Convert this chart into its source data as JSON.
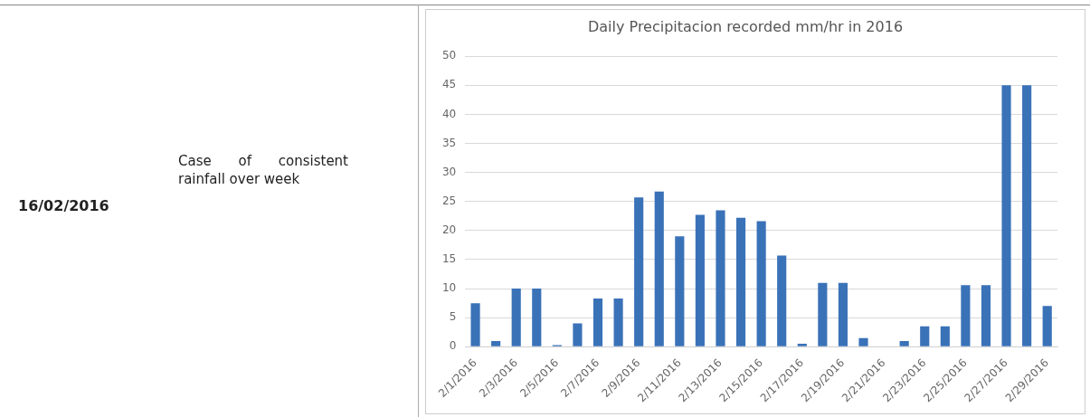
{
  "chart_data": {
    "type": "bar",
    "title": "Daily Precipitacion recorded mm/hr in 2016",
    "categories": [
      "2/1/2016",
      null,
      "2/3/2016",
      null,
      "2/5/2016",
      null,
      "2/7/2016",
      null,
      "2/9/2016",
      null,
      "2/11/2016",
      null,
      "2/13/2016",
      null,
      "2/15/2016",
      null,
      "2/17/2016",
      null,
      "2/19/2016",
      null,
      "2/21/2016",
      null,
      "2/23/2016",
      null,
      "2/25/2016",
      null,
      "2/27/2016",
      null,
      "2/29/2016"
    ],
    "values": [
      7.5,
      1,
      10,
      10,
      0.3,
      4,
      8.3,
      8.3,
      25.7,
      26.7,
      19,
      22.7,
      23.5,
      22.2,
      21.6,
      15.7,
      0.5,
      11,
      11,
      1.5,
      0,
      1,
      3.5,
      3.5,
      10.6,
      10.6,
      45,
      45,
      7
    ],
    "color": "#3a72b8",
    "ylim": [
      0,
      50
    ],
    "yticks": [
      0,
      5,
      10,
      15,
      20,
      25,
      30,
      35,
      40,
      45,
      50
    ],
    "grid": "y",
    "annotations": [
      "16/02/2016",
      "Case of consistent rainfall over week"
    ]
  }
}
